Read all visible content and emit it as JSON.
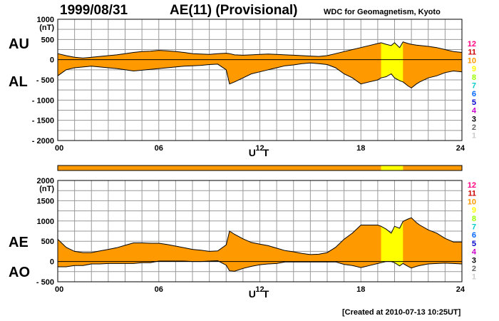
{
  "header": {
    "date": "1999/08/31",
    "title": "AE(11) (Provisional)",
    "source": "WDC for Geomagnetism, Kyoto"
  },
  "footer": {
    "created": "[Created at 2010-07-13 10:25UT]"
  },
  "colors": {
    "fill_normal": "#ff9900",
    "fill_highlight": "#ffff00",
    "grid": "#999999",
    "line": "#000000"
  },
  "station_scale": {
    "labels": [
      "12",
      "11",
      "10",
      "9",
      "8",
      "7",
      "6",
      "5",
      "4",
      "3",
      "2",
      "1"
    ],
    "colors": [
      "#ff0080",
      "#cc0000",
      "#ff9900",
      "#ffff00",
      "#99ff00",
      "#00cccc",
      "#0066ff",
      "#0000cc",
      "#cc00cc",
      "#000000",
      "#666666",
      "#cccccc"
    ]
  },
  "station_bar": {
    "segments": [
      {
        "from": 0,
        "to": 19.2,
        "color": "#ff9900"
      },
      {
        "from": 19.2,
        "to": 20.5,
        "color": "#ffff00"
      },
      {
        "from": 20.5,
        "to": 24,
        "color": "#ff9900"
      }
    ]
  },
  "chart_data": [
    {
      "type": "area",
      "name_upper": "AU",
      "name_lower": "AL",
      "unit": "(nT)",
      "xlabel": "U T",
      "xlim": [
        0,
        24
      ],
      "ylim": [
        -2000,
        1000
      ],
      "yticks": [
        1000,
        500,
        0,
        -500,
        -1000,
        -1500,
        -2000
      ],
      "ytick_labels": [
        "1000",
        "500",
        "0",
        "- 500",
        "- 1000",
        "- 1500",
        "- 2000"
      ],
      "xticks": [
        0,
        6,
        12,
        18,
        24
      ],
      "xtick_labels": [
        "00",
        "06",
        "12",
        "18",
        "24"
      ],
      "highlight": [
        19.2,
        20.5
      ],
      "x": [
        0,
        0.5,
        1,
        1.5,
        2,
        2.5,
        3,
        3.5,
        4,
        4.5,
        5,
        5.5,
        6,
        6.5,
        7,
        7.5,
        8,
        8.5,
        9,
        9.5,
        10,
        10.2,
        10.5,
        11,
        11.5,
        12,
        12.5,
        13,
        13.5,
        14,
        14.5,
        15,
        15.5,
        16,
        16.5,
        17,
        17.5,
        18,
        18.5,
        19,
        19.2,
        19.5,
        19.8,
        20,
        20.3,
        20.5,
        20.8,
        21,
        21.3,
        21.5,
        22,
        22.5,
        23,
        23.5,
        24
      ],
      "upper": [
        150,
        100,
        60,
        40,
        60,
        80,
        100,
        120,
        150,
        180,
        200,
        210,
        230,
        220,
        200,
        180,
        150,
        140,
        130,
        150,
        160,
        150,
        120,
        110,
        120,
        130,
        140,
        130,
        120,
        110,
        100,
        90,
        80,
        100,
        150,
        200,
        250,
        300,
        350,
        400,
        420,
        380,
        350,
        420,
        300,
        440,
        400,
        380,
        360,
        350,
        330,
        300,
        250,
        200,
        180
      ],
      "lower": [
        -400,
        -250,
        -200,
        -180,
        -160,
        -180,
        -200,
        -220,
        -250,
        -280,
        -260,
        -240,
        -220,
        -200,
        -180,
        -160,
        -150,
        -140,
        -120,
        -110,
        -250,
        -600,
        -550,
        -450,
        -350,
        -300,
        -250,
        -200,
        -150,
        -130,
        -100,
        -80,
        -100,
        -120,
        -200,
        -350,
        -450,
        -600,
        -550,
        -500,
        -450,
        -420,
        -350,
        -450,
        -520,
        -550,
        -650,
        -700,
        -600,
        -550,
        -450,
        -400,
        -320,
        -280,
        -300
      ]
    },
    {
      "type": "area",
      "name_upper": "AE",
      "name_lower": "AO",
      "unit": "(nT)",
      "xlabel": "U T",
      "xlim": [
        0,
        24
      ],
      "ylim": [
        -500,
        2000
      ],
      "yticks": [
        2000,
        1500,
        1000,
        500,
        0,
        -500
      ],
      "ytick_labels": [
        "2000",
        "1500",
        "1000",
        "500",
        "0",
        "- 500"
      ],
      "xticks": [
        0,
        6,
        12,
        18,
        24
      ],
      "xtick_labels": [
        "00",
        "06",
        "12",
        "18",
        "24"
      ],
      "highlight": [
        19.2,
        20.5
      ],
      "x": [
        0,
        0.5,
        1,
        1.5,
        2,
        2.5,
        3,
        3.5,
        4,
        4.5,
        5,
        5.5,
        6,
        6.5,
        7,
        7.5,
        8,
        8.5,
        9,
        9.5,
        10,
        10.2,
        10.5,
        11,
        11.5,
        12,
        12.5,
        13,
        13.5,
        14,
        14.5,
        15,
        15.5,
        16,
        16.5,
        17,
        17.5,
        18,
        18.5,
        19,
        19.2,
        19.5,
        19.8,
        20,
        20.3,
        20.5,
        20.8,
        21,
        21.3,
        21.5,
        22,
        22.5,
        23,
        23.5,
        24
      ],
      "upper": [
        550,
        350,
        250,
        220,
        220,
        260,
        300,
        340,
        400,
        460,
        460,
        450,
        450,
        420,
        380,
        340,
        300,
        280,
        250,
        260,
        410,
        750,
        670,
        560,
        470,
        430,
        390,
        330,
        270,
        240,
        200,
        170,
        180,
        220,
        350,
        550,
        700,
        900,
        900,
        900,
        870,
        800,
        700,
        870,
        820,
        990,
        1050,
        1080,
        960,
        900,
        780,
        700,
        570,
        480,
        480
      ],
      "lower": [
        -130,
        -130,
        -100,
        -100,
        -60,
        -60,
        -50,
        -50,
        -50,
        -50,
        -30,
        -30,
        10,
        10,
        10,
        10,
        0,
        0,
        10,
        20,
        -90,
        -230,
        -240,
        -170,
        -120,
        -80,
        -60,
        -50,
        -10,
        -10,
        -10,
        -10,
        -10,
        -10,
        -10,
        -70,
        -100,
        -150,
        -100,
        -50,
        -30,
        0,
        0,
        -30,
        -110,
        -50,
        -120,
        -160,
        -120,
        -100,
        -60,
        -50,
        -40,
        -50,
        -60
      ]
    }
  ]
}
